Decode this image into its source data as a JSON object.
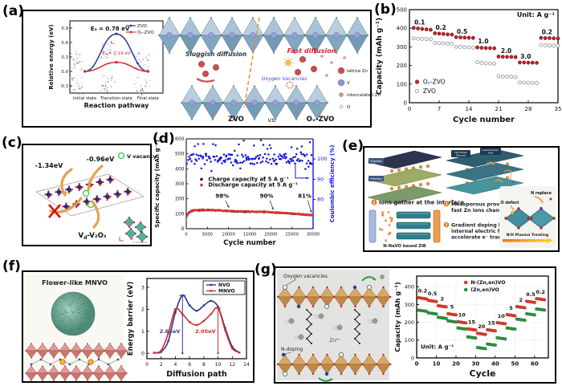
{
  "panel_labels": {
    "a": "(a)",
    "b": "(b)",
    "c": "(c)",
    "d": "(d)",
    "e": "(e)",
    "f": "(f)",
    "g": "(g)"
  },
  "panel_a": {
    "schematic": {
      "sluggish": "Sluggish diffusion",
      "fast": "Fast diffusion",
      "oxygen_vacancies": "Oxygen Vacancies",
      "left_name": "ZVO",
      "vs": "vs.",
      "right_name": "Oᵥ-ZVO",
      "legend": [
        {
          "label": "lattice Zn",
          "color": "#c8504e",
          "r": 4
        },
        {
          "label": "V",
          "color": "#8f94cc",
          "r": 4
        },
        {
          "label": "intercalated Zn",
          "color": "#e2908e",
          "r": 2.5
        },
        {
          "label": "O",
          "color": "#f2f2f2",
          "r": 2
        }
      ]
    }
  },
  "panel_c": {
    "energy_left": "-1.34eV",
    "energy_right": "-0.96eV",
    "legend_label": "V vacancy",
    "formula_main": "V",
    "formula_sub": "d",
    "formula_rest": "-V₂O₃",
    "inset_caption": "V vacancy"
  },
  "panel_e": {
    "num1": "1",
    "num2": "2",
    "num3": "3",
    "bullet1": "Ions gather at the interface",
    "bullet2": "Mesoporous provide fast Zn ions channels",
    "bullet3": "Gradient doping builds internal electric field to accelerate e⁻ transport",
    "device_caption": "N-NaVO based ZIB",
    "chip_interface": "Interface",
    "chip_fast_1": "Fast diffuse",
    "chip_fast_2": "Channels",
    "chip_field_1": "Internal Electric",
    "chip_field_2": "Field",
    "electron": "e⁻",
    "o_defect": "O defect",
    "n_replace": "N replace",
    "plasma": "N/H Plasma Treating"
  },
  "panel_f": {
    "title": "Flower-like MNVO"
  },
  "panel_g": {
    "oxygen_vacancies": "Oxygen vacancies",
    "n_doping": "N-doping",
    "zn_ion": "Zn²⁺"
  },
  "chart_data": [
    {
      "id": "a_pathway",
      "type": "line",
      "xlabel": "Reaction pathway",
      "ylabel": "Relative energy (eV)",
      "categories": [
        "Initial state",
        "Transition state",
        "Final state"
      ],
      "ylim": [
        -0.45,
        1.05
      ],
      "yticks": [
        -0.3,
        0.0,
        0.3,
        0.6,
        0.9
      ],
      "series": [
        {
          "name": "ZVO",
          "color": "#2b3990",
          "values": [
            0.0,
            0.78,
            0.0
          ]
        },
        {
          "name": "Oᵥ-ZVO",
          "color": "#d6292c",
          "values": [
            0.0,
            0.19,
            0.0
          ]
        }
      ],
      "annotations": [
        {
          "text": "Eₐ = 0.78 eV",
          "color": "#111111",
          "value": 0.78
        },
        {
          "text": "Eₐ = 0.19 eV",
          "color": "#d6292c",
          "value": 0.19
        }
      ]
    },
    {
      "id": "b_rate",
      "type": "scatter",
      "xlabel": "Cycle number",
      "ylabel": "Capacity (mAh g⁻¹)",
      "note": "Unit: A g⁻¹",
      "xlim": [
        0,
        35
      ],
      "ylim": [
        0,
        500
      ],
      "xticks": [
        0,
        7,
        14,
        21,
        28,
        35
      ],
      "yticks": [
        0,
        100,
        200,
        300,
        400,
        500
      ],
      "rate_labels": [
        {
          "text": "0.1",
          "x": 2.4,
          "y": 420
        },
        {
          "text": "0.2",
          "x": 7.4,
          "y": 392
        },
        {
          "text": "0.5",
          "x": 12.4,
          "y": 370
        },
        {
          "text": "1.0",
          "x": 17.4,
          "y": 318
        },
        {
          "text": "2.0",
          "x": 22.8,
          "y": 268
        },
        {
          "text": "3.0",
          "x": 27.4,
          "y": 236
        },
        {
          "text": "0.2",
          "x": 32.4,
          "y": 368
        }
      ],
      "series": [
        {
          "name": "Oᵥ-ZVO",
          "color": "#c1272d",
          "fill": "#c1272d",
          "edge": "#7a1014",
          "values": [
            [
              1,
              402
            ],
            [
              2,
              399
            ],
            [
              3,
              396
            ],
            [
              4,
              394
            ],
            [
              5,
              392
            ],
            [
              6,
              373
            ],
            [
              7,
              371
            ],
            [
              8,
              369
            ],
            [
              9,
              367
            ],
            [
              10,
              366
            ],
            [
              11,
              352
            ],
            [
              12,
              351
            ],
            [
              13,
              350
            ],
            [
              14,
              349
            ],
            [
              15,
              348
            ],
            [
              16,
              297
            ],
            [
              17,
              295
            ],
            [
              18,
              294
            ],
            [
              19,
              293
            ],
            [
              20,
              292
            ],
            [
              21,
              248
            ],
            [
              22,
              247
            ],
            [
              23,
              246
            ],
            [
              24,
              246
            ],
            [
              25,
              245
            ],
            [
              26,
              216
            ],
            [
              27,
              216
            ],
            [
              28,
              215
            ],
            [
              29,
              215
            ],
            [
              30,
              214
            ],
            [
              31,
              348
            ],
            [
              32,
              347
            ],
            [
              33,
              347
            ],
            [
              34,
              346
            ],
            [
              35,
              345
            ]
          ]
        },
        {
          "name": "ZVO",
          "color": "#808080",
          "fill": "#ffffff",
          "edge": "#808080",
          "values": [
            [
              1,
              346
            ],
            [
              2,
              344
            ],
            [
              3,
              343
            ],
            [
              4,
              342
            ],
            [
              5,
              341
            ],
            [
              6,
              322
            ],
            [
              7,
              320
            ],
            [
              8,
              319
            ],
            [
              9,
              318
            ],
            [
              10,
              317
            ],
            [
              11,
              301
            ],
            [
              12,
              300
            ],
            [
              13,
              298
            ],
            [
              14,
              297
            ],
            [
              15,
              296
            ],
            [
              16,
              218
            ],
            [
              17,
              214
            ],
            [
              18,
              212
            ],
            [
              19,
              211
            ],
            [
              20,
              210
            ],
            [
              21,
              142
            ],
            [
              22,
              141
            ],
            [
              23,
              140
            ],
            [
              24,
              139
            ],
            [
              25,
              138
            ],
            [
              26,
              109
            ],
            [
              27,
              108
            ],
            [
              28,
              107
            ],
            [
              29,
              107
            ],
            [
              30,
              106
            ],
            [
              31,
              310
            ],
            [
              32,
              309
            ],
            [
              33,
              308
            ],
            [
              34,
              307
            ],
            [
              35,
              306
            ]
          ]
        }
      ]
    },
    {
      "id": "d_cycle",
      "type": "scatter",
      "xlabel": "Cycle number",
      "ylabel": "Specific capacity (mAh g⁻¹)",
      "y2label": "Coulombic efficiency (%)",
      "y2color": "#1515dd",
      "xlim": [
        0,
        30000
      ],
      "ylim": [
        0,
        600
      ],
      "xticks": [
        0,
        5000,
        10000,
        15000,
        20000,
        25000,
        30000
      ],
      "yticks": [
        0,
        100,
        200,
        300,
        400,
        500,
        600
      ],
      "y2ticks": [
        80,
        90,
        100
      ],
      "series": [
        {
          "name": "Charge capacity at 5 A g⁻¹",
          "color": "#1a1a1a",
          "curve": [
            [
              100,
              78
            ],
            [
              500,
              102
            ],
            [
              1000,
              115
            ],
            [
              2000,
              122
            ],
            [
              4000,
              124
            ],
            [
              6000,
              123
            ],
            [
              8000,
              121
            ],
            [
              10000,
              117
            ],
            [
              12000,
              114
            ],
            [
              15000,
              113
            ],
            [
              18000,
              112
            ],
            [
              20000,
              109
            ],
            [
              22000,
              106
            ],
            [
              24000,
              102
            ],
            [
              26000,
              98
            ],
            [
              28000,
              93
            ],
            [
              30000,
              89
            ]
          ]
        },
        {
          "name": "Discharge capacity at 5 A g⁻¹",
          "color": "#e03030",
          "curve": [
            [
              100,
              80
            ],
            [
              500,
              104
            ],
            [
              1000,
              117
            ],
            [
              2000,
              124
            ],
            [
              4000,
              126
            ],
            [
              6000,
              125
            ],
            [
              8000,
              123
            ],
            [
              10000,
              119
            ],
            [
              12000,
              116
            ],
            [
              15000,
              115
            ],
            [
              18000,
              114
            ],
            [
              20000,
              111
            ],
            [
              22000,
              108
            ],
            [
              24000,
              104
            ],
            [
              26000,
              100
            ],
            [
              28000,
              95
            ],
            [
              30000,
              91
            ]
          ]
        }
      ],
      "coulombic_efficiency": {
        "color": "#1515dd",
        "mean_percent": 98,
        "spread_percent": 3
      },
      "annotations": [
        {
          "text": "98%",
          "x": 8500
        },
        {
          "text": "90%",
          "x": 19000
        },
        {
          "text": "81%",
          "x": 28000
        }
      ]
    },
    {
      "id": "f_barrier",
      "type": "line",
      "xlabel": "Diffusion path",
      "ylabel": "Energy barrier (eV)",
      "xlim": [
        0,
        14
      ],
      "ylim": [
        -0.25,
        3.4
      ],
      "xticks": [
        0,
        2,
        4,
        6,
        8,
        10,
        12,
        14
      ],
      "yticks": [
        0,
        1,
        2,
        3
      ],
      "series": [
        {
          "name": "NVO",
          "color": "#2b3990",
          "x": [
            1,
            2,
            3,
            4,
            5,
            6,
            7,
            8,
            9,
            10,
            11,
            12,
            13
          ],
          "values": [
            0.02,
            0.06,
            0.55,
            1.85,
            2.63,
            2.18,
            1.93,
            2.17,
            2.38,
            2.12,
            1.15,
            0.3,
            0.03
          ]
        },
        {
          "name": "MNVO",
          "color": "#d6292c",
          "x": [
            1,
            2,
            3,
            4,
            5,
            6,
            7,
            8,
            9,
            10,
            11,
            12,
            13
          ],
          "values": [
            0.02,
            0.12,
            0.9,
            2.0,
            1.78,
            1.42,
            1.28,
            1.47,
            1.78,
            2.05,
            1.05,
            0.22,
            0.03
          ]
        }
      ],
      "annotations": [
        {
          "text": "2.63eV",
          "x": 5,
          "value": 2.63,
          "color": "#2b3990"
        },
        {
          "text": "2.05eV",
          "x": 10,
          "value": 2.05,
          "color": "#d6292c"
        }
      ]
    },
    {
      "id": "g_rate",
      "type": "scatter",
      "xlabel": "Cycle",
      "ylabel": "Capacity (mAh g⁻¹)",
      "note": "Unit: A g⁻¹",
      "xlim": [
        0,
        67
      ],
      "ylim": [
        0,
        460
      ],
      "xticks": [
        0,
        10,
        20,
        30,
        40,
        50,
        60
      ],
      "yticks": [
        0,
        100,
        200,
        300,
        400
      ],
      "cycles_per_step": 5,
      "rate_labels": [
        "0.2",
        "0.5",
        "2",
        "5",
        "10",
        "15",
        "20",
        "15",
        "10",
        "5",
        "2",
        "0.5",
        "0.2"
      ],
      "series": [
        {
          "name": "N-(Zn,en)VO",
          "color": "#e8402e",
          "edge": "#9c1d10",
          "step_values": [
            335,
            320,
            290,
            245,
            200,
            160,
            135,
            155,
            195,
            240,
            285,
            315,
            330
          ]
        },
        {
          "name": "(Zn,en)VO",
          "color": "#2e9e3f",
          "edge": "#1a6326",
          "step_values": [
            265,
            250,
            225,
            205,
            165,
            115,
            55,
            75,
            110,
            165,
            215,
            245,
            272
          ]
        }
      ]
    }
  ]
}
